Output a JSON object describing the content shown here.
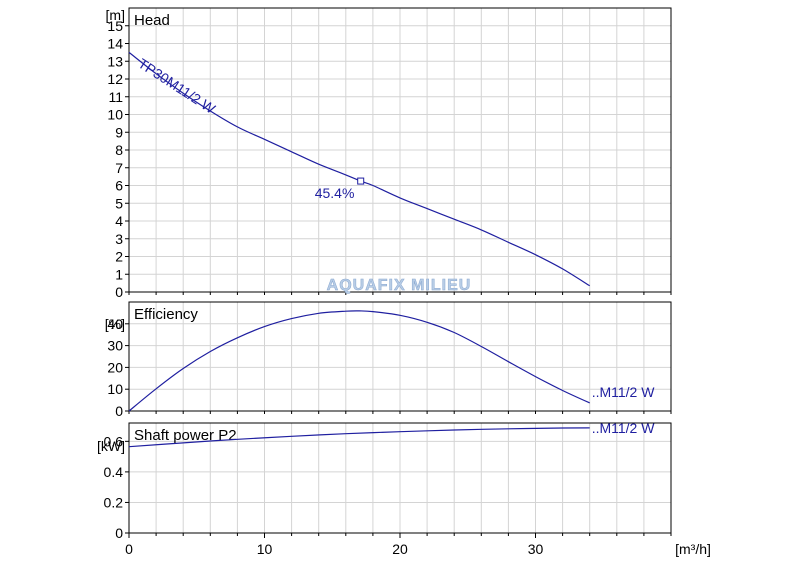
{
  "colors": {
    "curve": "#1f1fa0",
    "grid": "#d4d4d4",
    "watermark": "#b8cde6"
  },
  "watermark": "AQUAFIX MILIEU",
  "x_axis": {
    "unit": "[m³/h]",
    "range": [
      0,
      40
    ],
    "ticks": [
      0,
      10,
      20,
      30
    ],
    "tick_labels": [
      "0",
      "10",
      "20",
      "30"
    ]
  },
  "chart_data": [
    {
      "type": "line",
      "title": "Head",
      "ylabel": "[m]",
      "ylim": [
        0,
        16
      ],
      "y_ticks": [
        0,
        1,
        2,
        3,
        4,
        5,
        6,
        7,
        8,
        9,
        10,
        11,
        12,
        13,
        14,
        15
      ],
      "y_tick_labels": [
        "0",
        "1",
        "2",
        "3",
        "4",
        "5",
        "6",
        "7",
        "8",
        "9",
        "10",
        "11",
        "12",
        "13",
        "14",
        "15"
      ],
      "series": [
        {
          "name": "TP30M11/2 W",
          "x": [
            0,
            2,
            4,
            6,
            8,
            10,
            12,
            14,
            16,
            17.1,
            18,
            20,
            22,
            24,
            26,
            28,
            30,
            32,
            34
          ],
          "y": [
            13.5,
            12.3,
            11.2,
            10.2,
            9.3,
            8.6,
            7.9,
            7.2,
            6.6,
            6.25,
            6.0,
            5.3,
            4.7,
            4.1,
            3.5,
            2.8,
            2.1,
            1.3,
            0.35
          ]
        }
      ],
      "annotations": [
        {
          "text": "45.4%",
          "x": 17.1,
          "y": 6.25
        }
      ]
    },
    {
      "type": "line",
      "title": "Efficiency",
      "ylabel": "[%]",
      "ylim": [
        0,
        50
      ],
      "y_ticks": [
        0,
        10,
        20,
        30,
        40
      ],
      "y_tick_labels": [
        "0",
        "10",
        "20",
        "30",
        "40"
      ],
      "series": [
        {
          "name": "..M11/2 W",
          "x": [
            0,
            2,
            4,
            6,
            8,
            10,
            12,
            14,
            16,
            17,
            18,
            20,
            22,
            24,
            26,
            28,
            30,
            32,
            34
          ],
          "y": [
            0,
            10.2,
            19.5,
            27.3,
            33.6,
            38.7,
            42.4,
            44.8,
            45.8,
            45.9,
            45.6,
            43.9,
            40.7,
            36.0,
            29.6,
            22.6,
            15.8,
            9.4,
            3.7
          ]
        }
      ]
    },
    {
      "type": "line",
      "title": "Shaft power P2",
      "ylabel": "[kW]",
      "ylim": [
        0,
        0.72
      ],
      "y_ticks": [
        0,
        0.2,
        0.4,
        0.6
      ],
      "y_tick_labels": [
        "0",
        "0.2",
        "0.4",
        "0.6"
      ],
      "series": [
        {
          "name": "..M11/2 W",
          "x": [
            0,
            4,
            8,
            12,
            16,
            20,
            24,
            28,
            32,
            34
          ],
          "y": [
            0.565,
            0.59,
            0.613,
            0.633,
            0.65,
            0.663,
            0.674,
            0.682,
            0.687,
            0.688
          ]
        }
      ]
    }
  ]
}
